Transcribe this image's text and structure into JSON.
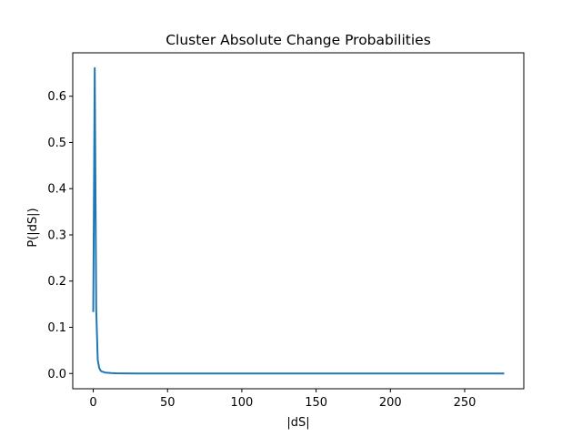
{
  "chart_data": {
    "type": "line",
    "title": "Cluster Absolute Change Probabilities",
    "xlabel": "|dS|",
    "ylabel": "P(|dS|)",
    "xlim": [
      -13.8,
      289.8
    ],
    "ylim": [
      -0.033,
      0.694
    ],
    "xticks": [
      0,
      50,
      100,
      150,
      200,
      250
    ],
    "yticks": [
      0.0,
      0.1,
      0.2,
      0.3,
      0.4,
      0.5,
      0.6
    ],
    "ytick_labels": [
      "0.0",
      "0.1",
      "0.2",
      "0.3",
      "0.4",
      "0.5",
      "0.6"
    ],
    "grid": false,
    "line_color": "#1f77b4",
    "series": [
      {
        "x": [
          0,
          1,
          2,
          3,
          4,
          5,
          6,
          7,
          8,
          10,
          12,
          15,
          20,
          30,
          50,
          100,
          150,
          200,
          250,
          276
        ],
        "y": [
          0.135,
          0.661,
          0.14,
          0.03,
          0.012,
          0.006,
          0.004,
          0.003,
          0.002,
          0.0015,
          0.001,
          0.0006,
          0.0003,
          0.0001,
          5e-05,
          2e-05,
          1e-05,
          1e-05,
          0.0,
          0.0
        ]
      }
    ]
  }
}
